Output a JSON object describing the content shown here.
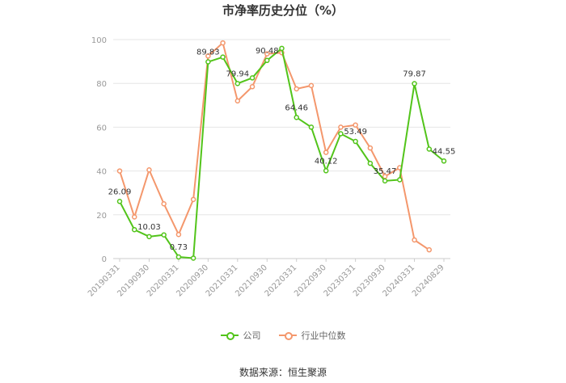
{
  "chart_data": {
    "type": "line",
    "title": "市净率历史分位（%）",
    "ylim": [
      0,
      100
    ],
    "y_ticks": [
      "0",
      "20",
      "40",
      "60",
      "80",
      "100"
    ],
    "x_tick_labels": [
      "20190331",
      "20190930",
      "20200331",
      "20200930",
      "20210331",
      "20210930",
      "20220331",
      "20220930",
      "20230331",
      "20230930",
      "20240331",
      "20240829"
    ],
    "x": [
      "20190331",
      "20190630",
      "20190930",
      "20191231",
      "20200331",
      "20200630",
      "20200930",
      "20201231",
      "20210331",
      "20210630",
      "20210930",
      "20211231",
      "20220331",
      "20220630",
      "20220930",
      "20221231",
      "20230331",
      "20230630",
      "20230930",
      "20231231",
      "20240331",
      "20240630",
      "20240829"
    ],
    "series": [
      {
        "name": "公司",
        "color": "#52c41a",
        "values": [
          26.09,
          13.2,
          10.03,
          10.8,
          0.73,
          0.2,
          89.83,
          92.0,
          79.94,
          82.5,
          90.48,
          96.0,
          64.46,
          60.0,
          40.12,
          57.0,
          53.49,
          43.5,
          35.47,
          36.0,
          79.87,
          50.0,
          44.55
        ],
        "labels": {
          "0": "26.09",
          "2": "10.03",
          "4": "0.73",
          "6": "89.83",
          "8": "79.94",
          "10": "90.48",
          "12": "64.46",
          "14": "40.12",
          "16": "53.49",
          "18": "35.47",
          "20": "79.87",
          "22": "44.55"
        }
      },
      {
        "name": "行业中位数",
        "color": "#f4976c",
        "values": [
          40.0,
          19.0,
          40.5,
          25.0,
          11.0,
          27.0,
          92.5,
          98.5,
          72.0,
          78.5,
          93.5,
          94.0,
          77.5,
          79.0,
          48.5,
          60.0,
          61.0,
          50.5,
          37.5,
          41.5,
          8.5,
          4.0,
          null
        ]
      }
    ],
    "grid": true,
    "legend_position": "bottom"
  },
  "source_text": "数据来源：恒生聚源"
}
